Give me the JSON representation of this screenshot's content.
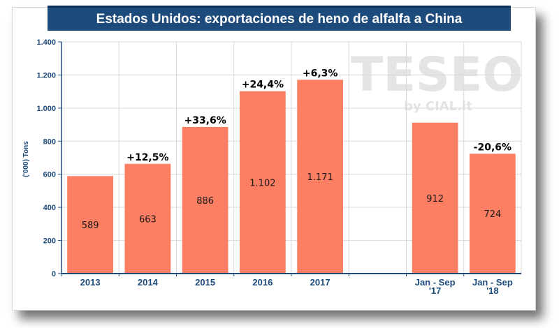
{
  "chart_data": {
    "type": "bar",
    "title": "Estados Unidos: exportaciones de heno de alfalfa a China",
    "ylabel": "('000) Tons",
    "xlabel": "",
    "ylim": [
      0,
      1400
    ],
    "yticks": [
      0,
      200,
      400,
      600,
      800,
      1000,
      1200,
      1400
    ],
    "ytick_labels": [
      "0",
      "200",
      "400",
      "600",
      "800",
      "1.000",
      "1.200",
      "1.400"
    ],
    "categories": [
      "2013",
      "2014",
      "2015",
      "2016",
      "2017",
      "",
      "Jan - Sep '17",
      "Jan - Sep '18"
    ],
    "category_lines": [
      [
        "2013"
      ],
      [
        "2014"
      ],
      [
        "2015"
      ],
      [
        "2016"
      ],
      [
        "2017"
      ],
      [],
      [
        "Jan - Sep",
        "'17"
      ],
      [
        "Jan - Sep",
        "'18"
      ]
    ],
    "values": [
      589,
      663,
      886,
      1102,
      1171,
      null,
      912,
      724
    ],
    "value_labels": [
      "589",
      "663",
      "886",
      "1.102",
      "1.171",
      null,
      "912",
      "724"
    ],
    "change_labels": [
      null,
      "+12,5%",
      "+33,6%",
      "+24,4%",
      "+6,3%",
      null,
      null,
      "-20,6%"
    ],
    "bar_color": "#fd7f63",
    "grid": true
  },
  "watermark": {
    "main": "TESEO",
    "sub": "by CIAL.it"
  }
}
